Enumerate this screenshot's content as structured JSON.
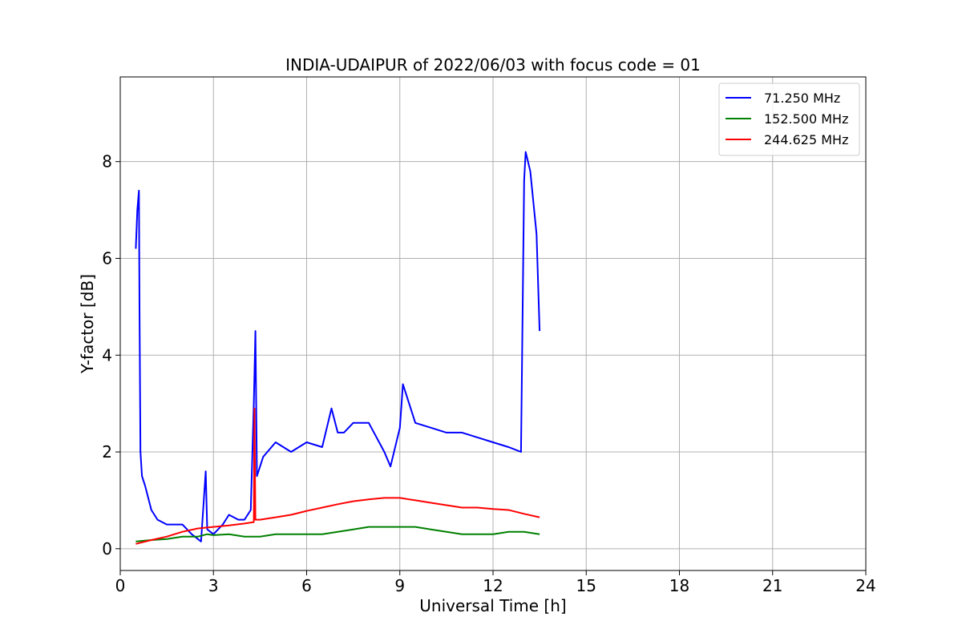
{
  "chart_data": {
    "type": "line",
    "title": "INDIA-UDAIPUR of 2022/06/03 with focus code = 01",
    "xlabel": "Universal Time [h]",
    "ylabel": "Y-factor [dB]",
    "xlim": [
      0,
      24
    ],
    "ylim": [
      -0.45,
      9.75
    ],
    "xticks": [
      0,
      3,
      6,
      9,
      12,
      15,
      18,
      21,
      24
    ],
    "yticks": [
      0,
      2,
      4,
      6,
      8
    ],
    "grid": true,
    "legend_position": "top-right",
    "series": [
      {
        "name": "  71.250 MHz",
        "color": "#0000ff",
        "x": [
          0.5,
          0.55,
          0.6,
          0.62,
          0.65,
          0.7,
          0.8,
          1.0,
          1.2,
          1.5,
          2.0,
          2.3,
          2.6,
          2.75,
          2.8,
          3.0,
          3.3,
          3.5,
          3.8,
          4.0,
          4.2,
          4.3,
          4.35,
          4.4,
          4.6,
          5.0,
          5.5,
          6.0,
          6.5,
          6.8,
          7.0,
          7.2,
          7.5,
          8.0,
          8.5,
          8.7,
          9.0,
          9.1,
          9.5,
          10.0,
          10.5,
          11.0,
          11.5,
          12.0,
          12.5,
          12.9,
          13.0,
          13.05,
          13.2,
          13.4,
          13.5
        ],
        "y": [
          6.2,
          7.0,
          7.4,
          5.0,
          2.0,
          1.5,
          1.3,
          0.8,
          0.6,
          0.5,
          0.5,
          0.3,
          0.15,
          1.6,
          0.4,
          0.3,
          0.5,
          0.7,
          0.6,
          0.6,
          0.8,
          3.0,
          4.5,
          1.5,
          1.9,
          2.2,
          2.0,
          2.2,
          2.1,
          2.9,
          2.4,
          2.4,
          2.6,
          2.6,
          2.0,
          1.7,
          2.5,
          3.4,
          2.6,
          2.5,
          2.4,
          2.4,
          2.3,
          2.2,
          2.1,
          2.0,
          7.6,
          8.2,
          7.8,
          6.5,
          4.5
        ]
      },
      {
        "name": "152.500 MHz",
        "color": "#008000",
        "x": [
          0.5,
          1.0,
          1.5,
          2.0,
          2.5,
          2.8,
          3.0,
          3.5,
          4.0,
          4.5,
          5.0,
          5.5,
          6.0,
          6.5,
          7.0,
          7.5,
          8.0,
          8.5,
          9.0,
          9.5,
          10.0,
          10.5,
          11.0,
          11.5,
          12.0,
          12.5,
          13.0,
          13.5
        ],
        "y": [
          0.15,
          0.18,
          0.2,
          0.25,
          0.25,
          0.3,
          0.28,
          0.3,
          0.25,
          0.25,
          0.3,
          0.3,
          0.3,
          0.3,
          0.35,
          0.4,
          0.45,
          0.45,
          0.45,
          0.45,
          0.4,
          0.35,
          0.3,
          0.3,
          0.3,
          0.35,
          0.35,
          0.3
        ]
      },
      {
        "name": "244.625 MHz",
        "color": "#ff0000",
        "x": [
          0.5,
          1.0,
          1.5,
          2.0,
          2.5,
          3.0,
          3.5,
          4.0,
          4.3,
          4.32,
          4.35,
          4.5,
          5.0,
          5.5,
          6.0,
          6.5,
          7.0,
          7.5,
          8.0,
          8.5,
          9.0,
          9.5,
          10.0,
          10.5,
          11.0,
          11.5,
          12.0,
          12.5,
          13.0,
          13.5
        ],
        "y": [
          0.1,
          0.18,
          0.25,
          0.35,
          0.42,
          0.45,
          0.48,
          0.52,
          0.55,
          2.9,
          0.6,
          0.6,
          0.65,
          0.7,
          0.78,
          0.85,
          0.92,
          0.98,
          1.02,
          1.05,
          1.05,
          1.0,
          0.95,
          0.9,
          0.85,
          0.85,
          0.82,
          0.8,
          0.72,
          0.65
        ]
      }
    ]
  }
}
